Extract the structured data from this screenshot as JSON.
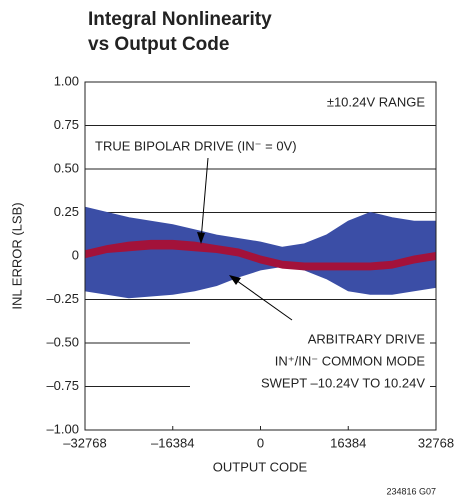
{
  "chart_data": {
    "type": "band",
    "title": [
      "Integral Nonlinearity",
      "vs Output Code"
    ],
    "xlabel": "OUTPUT CODE",
    "ylabel": "INL ERROR (LSB)",
    "footnote": "234816 G07",
    "annotations": {
      "range": "±10.24V RANGE",
      "bipolar": "TRUE BIPOLAR DRIVE (IN⁻ = 0V)",
      "arbitrary": [
        "ARBITRARY DRIVE",
        "IN⁺/IN⁻ COMMON MODE",
        "SWEPT –10.24V TO 10.24V"
      ]
    },
    "x": [
      -32768,
      -28672,
      -24576,
      -20480,
      -16384,
      -12288,
      -8192,
      -4096,
      0,
      4096,
      8192,
      12288,
      16384,
      20480,
      24576,
      28672,
      32768
    ],
    "series": [
      {
        "color": "#3b4ea6",
        "high": [
          0.28,
          0.25,
          0.22,
          0.2,
          0.18,
          0.15,
          0.12,
          0.1,
          0.08,
          0.05,
          0.07,
          0.12,
          0.2,
          0.25,
          0.22,
          0.2,
          0.2
        ],
        "low": [
          -0.2,
          -0.22,
          -0.24,
          -0.23,
          -0.22,
          -0.2,
          -0.17,
          -0.12,
          -0.08,
          -0.06,
          -0.08,
          -0.13,
          -0.2,
          -0.22,
          -0.22,
          -0.2,
          -0.18
        ]
      },
      {
        "color": "#a3123a",
        "high": [
          0.03,
          0.06,
          0.08,
          0.09,
          0.09,
          0.08,
          0.06,
          0.04,
          0.0,
          -0.03,
          -0.04,
          -0.04,
          -0.04,
          -0.04,
          -0.03,
          0.0,
          0.02
        ],
        "low": [
          -0.01,
          0.02,
          0.03,
          0.04,
          0.04,
          0.03,
          0.02,
          0.0,
          -0.04,
          -0.07,
          -0.08,
          -0.08,
          -0.08,
          -0.08,
          -0.07,
          -0.04,
          -0.02
        ]
      }
    ],
    "xlim": [
      -32768,
      32768
    ],
    "xticks": [
      {
        "value": -32768,
        "label": "–32768"
      },
      {
        "value": -16384,
        "label": "–16384"
      },
      0,
      16384,
      32768
    ],
    "ylim": [
      -1,
      1
    ],
    "yticks": [
      {
        "value": -1,
        "label": "–1.00"
      },
      {
        "value": -0.75,
        "label": "–0.75"
      },
      {
        "value": -0.5,
        "label": "–0.50"
      },
      {
        "value": -0.25,
        "label": "–0.25"
      },
      0,
      {
        "value": 0.25,
        "label": "0.25"
      },
      {
        "value": 0.5,
        "label": "0.50"
      },
      {
        "value": 0.75,
        "label": "0.75"
      },
      {
        "value": 1,
        "label": "1.00"
      }
    ],
    "grid": true
  }
}
